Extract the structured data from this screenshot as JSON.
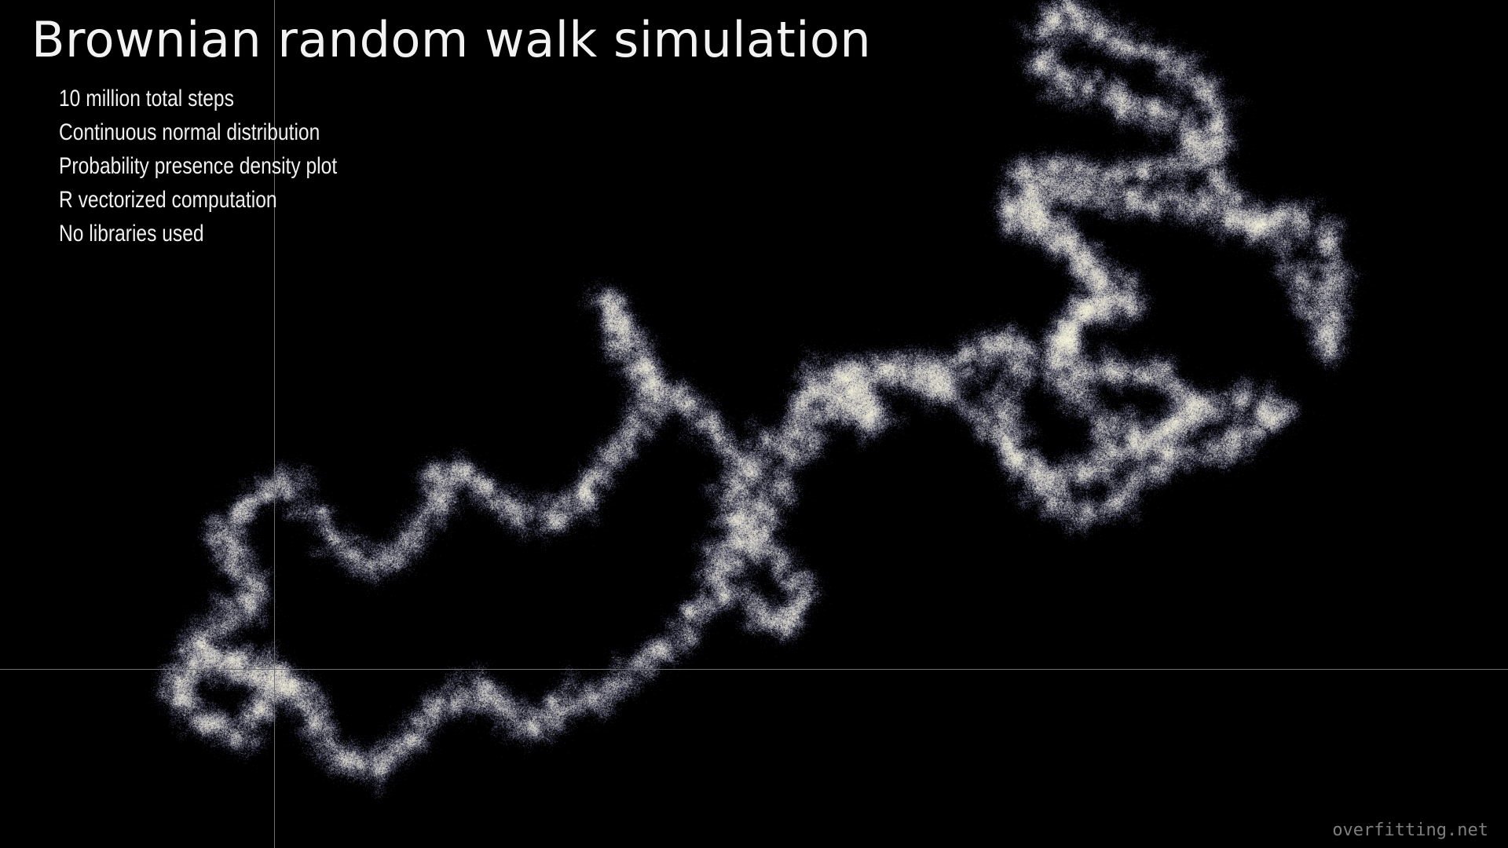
{
  "title": "Brownian random walk simulation",
  "notes": [
    "10 million total steps",
    "Continuous normal distribution",
    "Probability presence density plot",
    "R vectorized computation",
    "No libraries used"
  ],
  "watermark": "overfitting.net",
  "colors": {
    "background": "#000000",
    "axis": "#6f6f6f",
    "density_low": "#2a2a6e",
    "density_high": "#f4f2d8",
    "text": "#f2f2f2"
  }
}
